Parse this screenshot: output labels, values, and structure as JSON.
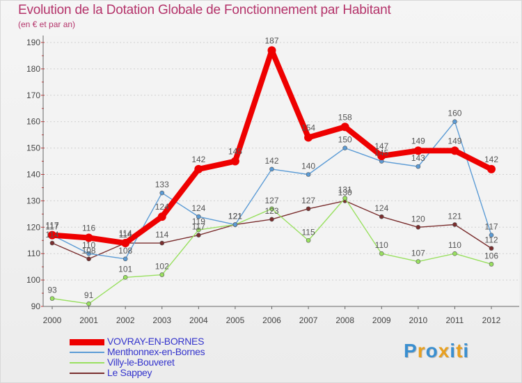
{
  "title": "Evolution de la Dotation Globale de Fonctionnement par Habitant",
  "subtitle": "(en € et par an)",
  "logo": {
    "text": "Proxiti",
    "letters": [
      "P",
      "r",
      "o",
      "x",
      "i",
      "t",
      "i"
    ],
    "colors": [
      "#3a8fd0",
      "#e8a020",
      "#3a8fd0",
      "#e8a020",
      "#3a8fd0",
      "#e8a020",
      "#3a8fd0"
    ]
  },
  "chart_data": {
    "type": "line",
    "title": "Evolution de la Dotation Globale de Fonctionnement par Habitant",
    "subtitle": "(en € et par an)",
    "x": [
      "2000",
      "2001",
      "2002",
      "2003",
      "2004",
      "2005",
      "2006",
      "2007",
      "2008",
      "2009",
      "2010",
      "2011",
      "2012"
    ],
    "ylim": [
      90,
      190
    ],
    "yticks": [
      90,
      100,
      110,
      120,
      130,
      140,
      150,
      160,
      170,
      180,
      190
    ],
    "grid": true,
    "legend_position": "bottom-left",
    "series": [
      {
        "name": "VOVRAY-EN-BORNES",
        "color": "#ee0000",
        "values": [
          117,
          116,
          114,
          124,
          142,
          145,
          187,
          154,
          158,
          147,
          149,
          149,
          142
        ]
      },
      {
        "name": "Menthonnex-en-Bornes",
        "color": "#5b9bd5",
        "values": [
          117,
          110,
          108,
          133,
          124,
          121,
          142,
          140,
          150,
          145,
          143,
          160,
          117
        ]
      },
      {
        "name": "Villy-le-Bouveret",
        "color": "#99e060",
        "values": [
          93,
          91,
          101,
          102,
          119,
          121,
          127,
          115,
          131,
          110,
          107,
          110,
          106
        ]
      },
      {
        "name": "Le Sappey",
        "color": "#7a2e2e",
        "values": [
          114,
          108,
          114,
          114,
          117,
          121,
          123,
          127,
          130,
          124,
          120,
          121,
          112
        ]
      }
    ]
  }
}
